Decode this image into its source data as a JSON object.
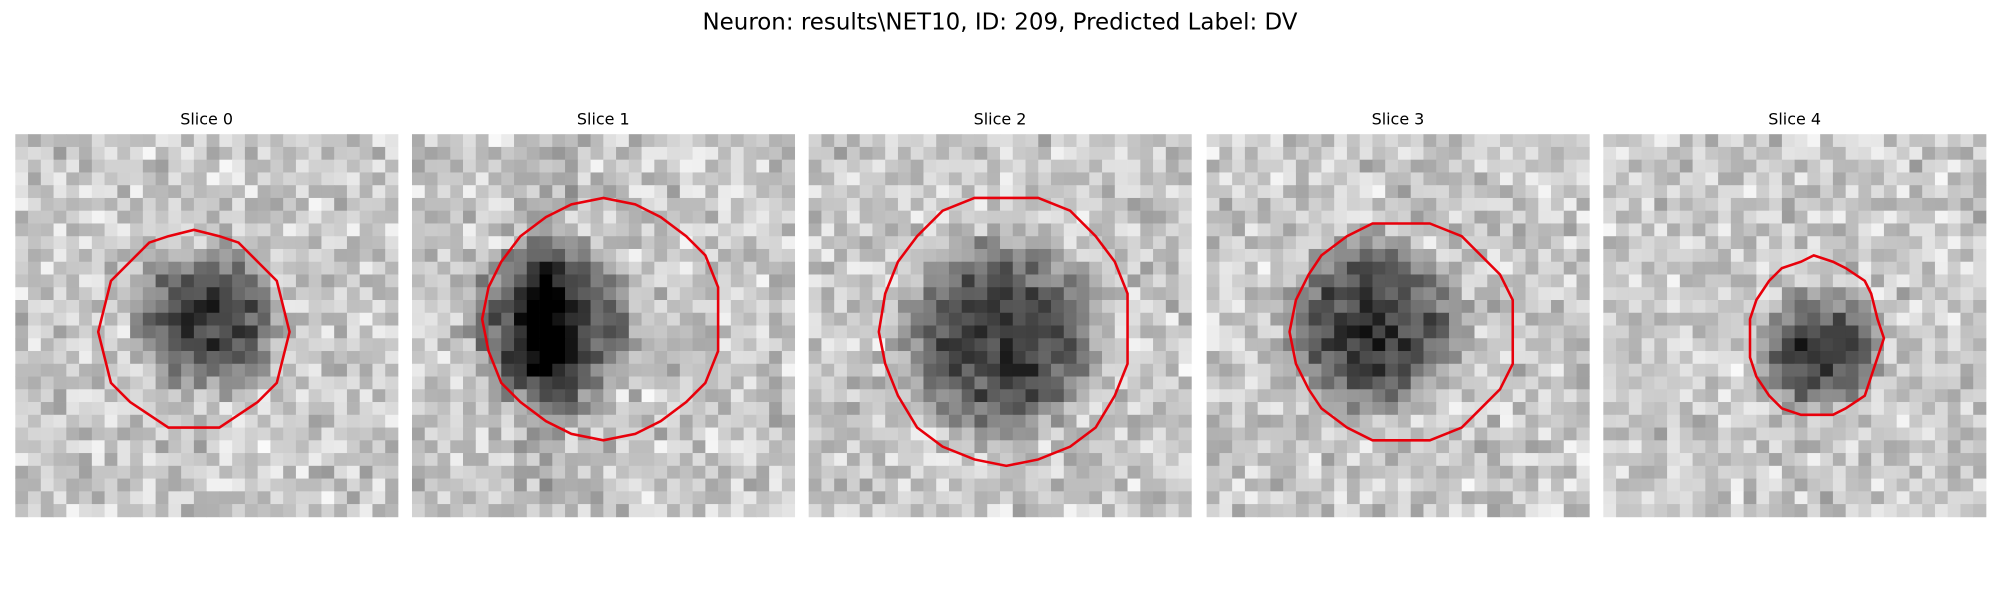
{
  "figure": {
    "title": "Neuron: results\\NET10, ID: 209, Predicted Label: DV",
    "panels": [
      {
        "title": "Slice 0"
      },
      {
        "title": "Slice 1"
      },
      {
        "title": "Slice 2"
      },
      {
        "title": "Slice 3"
      },
      {
        "title": "Slice 4"
      }
    ]
  }
}
